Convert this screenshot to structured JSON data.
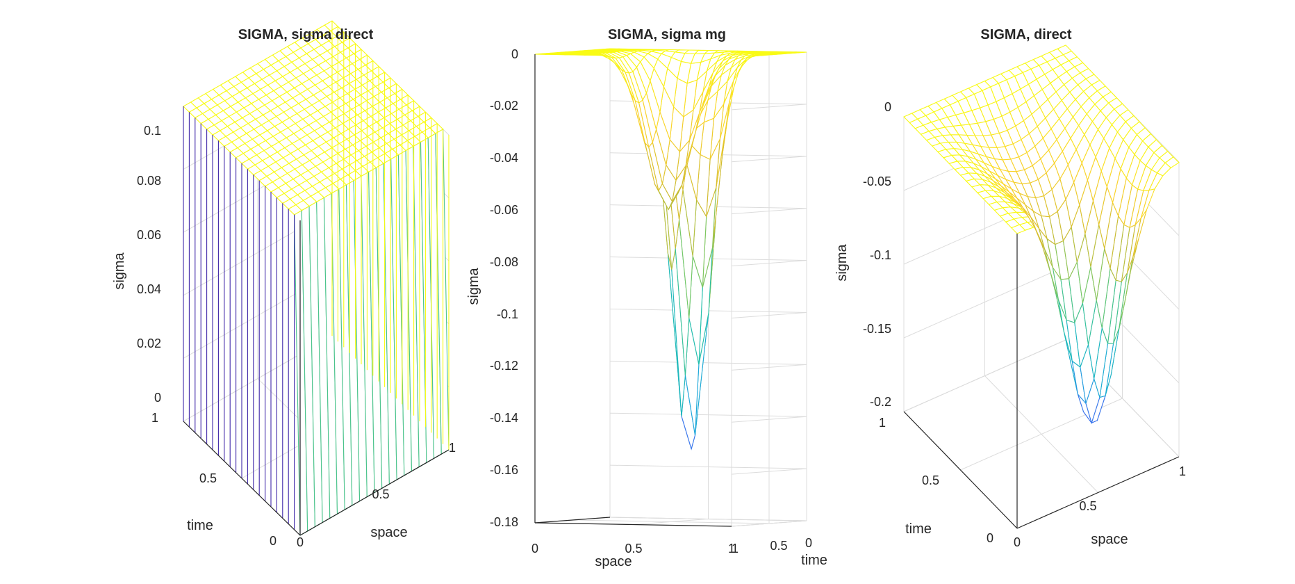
{
  "figure": {
    "background": "#ffffff",
    "colormap": "parula",
    "colormap_stops": [
      "#3e26a8",
      "#4760f3",
      "#1fa8db",
      "#1ebfb0",
      "#75c765",
      "#d2bb2f",
      "#fad22b",
      "#f9fb15"
    ]
  },
  "chart_data": [
    {
      "type": "mesh",
      "title": "SIGMA,  sigma direct",
      "xlabel": "space",
      "ylabel": "time",
      "zlabel": "sigma",
      "xlim": [
        0,
        1
      ],
      "ylim": [
        0,
        1
      ],
      "zlim": [
        0,
        0.1
      ],
      "x_ticks": [
        "0",
        "0.5",
        "1"
      ],
      "y_ticks": [
        "0",
        "0.5",
        "1"
      ],
      "z_ticks": [
        "0",
        "0.02",
        "0.04",
        "0.06",
        "0.08",
        "0.1"
      ],
      "grid": true,
      "surface": "z = 0.1 for time > 0 (flat plateau); z = 0 along time = 0",
      "mesh_size": [
        21,
        21
      ]
    },
    {
      "type": "mesh",
      "title": "SIGMA, sigma mg",
      "xlabel": "space",
      "ylabel": "time",
      "zlabel": "sigma",
      "xlim": [
        0,
        1
      ],
      "ylim": [
        0,
        1
      ],
      "zlim": [
        -0.18,
        0
      ],
      "x_ticks": [
        "0",
        "0.5",
        "1"
      ],
      "y_ticks": [
        "0",
        "0.5",
        "1"
      ],
      "z_ticks": [
        "-0.18",
        "-0.16",
        "-0.14",
        "-0.12",
        "-0.1",
        "-0.08",
        "-0.06",
        "-0.04",
        "-0.02",
        "0"
      ],
      "grid": true,
      "minimum": {
        "space": 0.7,
        "time": 0.2,
        "sigma": -0.172
      },
      "mesh_size": [
        21,
        21
      ]
    },
    {
      "type": "mesh",
      "title": "SIGMA, direct",
      "xlabel": "space",
      "ylabel": "time",
      "zlabel": "sigma",
      "xlim": [
        0,
        1
      ],
      "ylim": [
        0,
        1
      ],
      "zlim": [
        -0.2,
        0
      ],
      "x_ticks": [
        "0",
        "0.5",
        "1"
      ],
      "y_ticks": [
        "0",
        "0.5",
        "1"
      ],
      "z_ticks": [
        "-0.2",
        "-0.15",
        "-0.1",
        "-0.05",
        "0"
      ],
      "grid": true,
      "minimum": {
        "space": 0.6,
        "time": 0.2,
        "sigma": -0.2
      },
      "mesh_size": [
        21,
        21
      ]
    }
  ]
}
